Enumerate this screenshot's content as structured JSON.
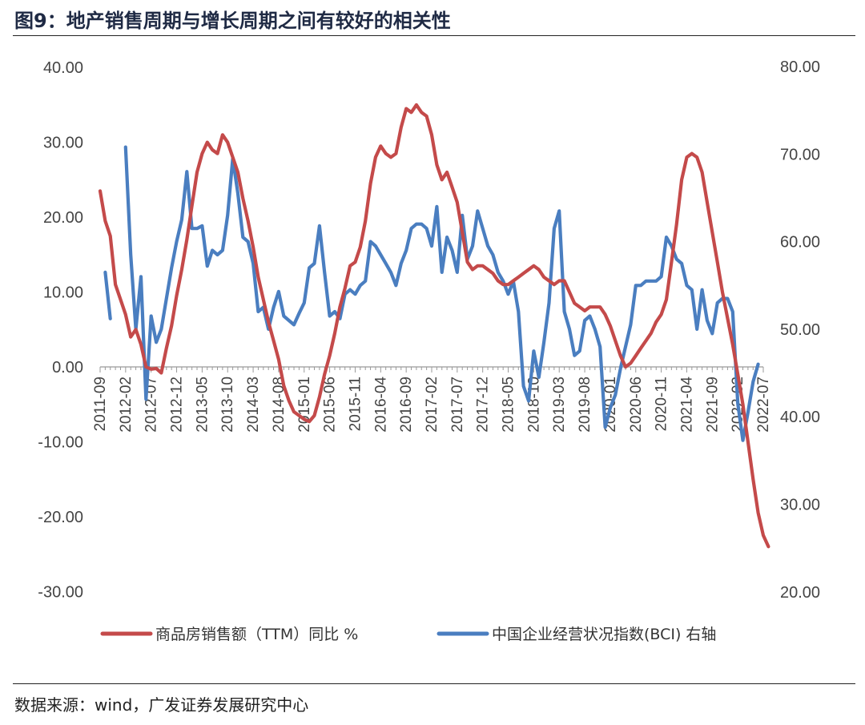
{
  "header": {
    "title": "图9：地产销售周期与增长周期之间有较好的相关性"
  },
  "footer": {
    "source": "数据来源：wind，广发证券发展研究中心"
  },
  "colors": {
    "sales": "#c44a4a",
    "bci": "#4a7ec0"
  },
  "chart_data": {
    "type": "line",
    "title": "",
    "x_ticks": [
      "2011-09",
      "2012-02",
      "2012-07",
      "2012-12",
      "2013-05",
      "2013-10",
      "2014-03",
      "2014-08",
      "2015-01",
      "2015-06",
      "2015-11",
      "2016-04",
      "2016-09",
      "2017-02",
      "2017-07",
      "2017-12",
      "2018-05",
      "2018-10",
      "2019-03",
      "2019-08",
      "2020-01",
      "2020-06",
      "2020-11",
      "2021-04",
      "2021-09",
      "2022-02",
      "2022-07"
    ],
    "y_left": {
      "min": -30,
      "max": 40,
      "step": 10,
      "tick_labels": [
        "40.00",
        "30.00",
        "20.00",
        "10.00",
        "0.00",
        "-10.00",
        "-20.00",
        "-30.00"
      ]
    },
    "y_right": {
      "min": 20,
      "max": 80,
      "step": 10,
      "tick_labels": [
        "80.00",
        "70.00",
        "60.00",
        "50.00",
        "40.00",
        "30.00",
        "20.00"
      ]
    },
    "grid": false,
    "legend_position": "bottom",
    "series": [
      {
        "name": "商品房销售额（TTM）同比 %",
        "axis": "left",
        "color": "#c44a4a",
        "points": [
          [
            "2011-09",
            23.5
          ],
          [
            "2011-10",
            19.5
          ],
          [
            "2011-11",
            17.5
          ],
          [
            "2011-12",
            11.0
          ],
          [
            "2012-01",
            9.0
          ],
          [
            "2012-02",
            7.0
          ],
          [
            "2012-03",
            4.0
          ],
          [
            "2012-04",
            5.0
          ],
          [
            "2012-05",
            3.0
          ],
          [
            "2012-06",
            0.0
          ],
          [
            "2012-07",
            -0.3
          ],
          [
            "2012-08",
            -0.2
          ],
          [
            "2012-09",
            -0.8
          ],
          [
            "2012-10",
            2.5
          ],
          [
            "2012-11",
            5.5
          ],
          [
            "2012-12",
            9.5
          ],
          [
            "2013-01",
            13.0
          ],
          [
            "2013-02",
            17.0
          ],
          [
            "2013-03",
            21.5
          ],
          [
            "2013-04",
            26.0
          ],
          [
            "2013-05",
            28.5
          ],
          [
            "2013-06",
            30.0
          ],
          [
            "2013-07",
            29.0
          ],
          [
            "2013-08",
            28.5
          ],
          [
            "2013-09",
            31.0
          ],
          [
            "2013-10",
            30.0
          ],
          [
            "2013-11",
            28.0
          ],
          [
            "2013-12",
            26.0
          ],
          [
            "2014-01",
            22.5
          ],
          [
            "2014-02",
            19.5
          ],
          [
            "2014-03",
            16.0
          ],
          [
            "2014-04",
            12.0
          ],
          [
            "2014-05",
            9.0
          ],
          [
            "2014-06",
            6.0
          ],
          [
            "2014-07",
            3.5
          ],
          [
            "2014-08",
            1.0
          ],
          [
            "2014-09",
            -2.5
          ],
          [
            "2014-10",
            -4.5
          ],
          [
            "2014-11",
            -6.0
          ],
          [
            "2014-12",
            -6.5
          ],
          [
            "2015-01",
            -7.0
          ],
          [
            "2015-02",
            -7.3
          ],
          [
            "2015-03",
            -6.5
          ],
          [
            "2015-04",
            -4.0
          ],
          [
            "2015-05",
            -1.0
          ],
          [
            "2015-06",
            1.5
          ],
          [
            "2015-07",
            4.5
          ],
          [
            "2015-08",
            8.0
          ],
          [
            "2015-09",
            10.5
          ],
          [
            "2015-10",
            13.5
          ],
          [
            "2015-11",
            14.0
          ],
          [
            "2015-12",
            16.0
          ],
          [
            "2016-01",
            19.5
          ],
          [
            "2016-02",
            24.5
          ],
          [
            "2016-03",
            28.0
          ],
          [
            "2016-04",
            29.5
          ],
          [
            "2016-05",
            28.5
          ],
          [
            "2016-06",
            28.0
          ],
          [
            "2016-07",
            28.5
          ],
          [
            "2016-08",
            32.0
          ],
          [
            "2016-09",
            34.5
          ],
          [
            "2016-10",
            34.0
          ],
          [
            "2016-11",
            35.0
          ],
          [
            "2016-12",
            34.0
          ],
          [
            "2017-01",
            33.5
          ],
          [
            "2017-02",
            31.0
          ],
          [
            "2017-03",
            27.0
          ],
          [
            "2017-04",
            25.0
          ],
          [
            "2017-05",
            26.0
          ],
          [
            "2017-06",
            24.0
          ],
          [
            "2017-07",
            22.0
          ],
          [
            "2017-08",
            18.0
          ],
          [
            "2017-09",
            14.0
          ],
          [
            "2017-10",
            13.0
          ],
          [
            "2017-11",
            13.5
          ],
          [
            "2017-12",
            13.5
          ],
          [
            "2018-01",
            13.0
          ],
          [
            "2018-02",
            12.5
          ],
          [
            "2018-03",
            11.5
          ],
          [
            "2018-04",
            11.0
          ],
          [
            "2018-05",
            11.0
          ],
          [
            "2018-06",
            11.5
          ],
          [
            "2018-07",
            12.0
          ],
          [
            "2018-08",
            12.5
          ],
          [
            "2018-09",
            13.0
          ],
          [
            "2018-10",
            13.5
          ],
          [
            "2018-11",
            13.0
          ],
          [
            "2018-12",
            12.0
          ],
          [
            "2019-01",
            11.5
          ],
          [
            "2019-02",
            11.0
          ],
          [
            "2019-03",
            11.5
          ],
          [
            "2019-04",
            11.5
          ],
          [
            "2019-05",
            10.0
          ],
          [
            "2019-06",
            8.5
          ],
          [
            "2019-07",
            8.0
          ],
          [
            "2019-08",
            7.5
          ],
          [
            "2019-09",
            8.0
          ],
          [
            "2019-10",
            8.0
          ],
          [
            "2019-11",
            8.0
          ],
          [
            "2019-12",
            7.0
          ],
          [
            "2020-01",
            5.5
          ],
          [
            "2020-02",
            3.5
          ],
          [
            "2020-03",
            1.5
          ],
          [
            "2020-04",
            0.0
          ],
          [
            "2020-05",
            0.5
          ],
          [
            "2020-06",
            1.5
          ],
          [
            "2020-07",
            2.5
          ],
          [
            "2020-08",
            3.5
          ],
          [
            "2020-09",
            4.5
          ],
          [
            "2020-10",
            6.0
          ],
          [
            "2020-11",
            7.0
          ],
          [
            "2020-12",
            9.0
          ],
          [
            "2021-01",
            14.0
          ],
          [
            "2021-02",
            19.0
          ],
          [
            "2021-03",
            25.0
          ],
          [
            "2021-04",
            28.0
          ],
          [
            "2021-05",
            28.5
          ],
          [
            "2021-06",
            28.0
          ],
          [
            "2021-07",
            26.0
          ],
          [
            "2021-08",
            22.0
          ],
          [
            "2021-09",
            18.0
          ],
          [
            "2021-10",
            14.0
          ],
          [
            "2021-11",
            10.0
          ],
          [
            "2021-12",
            6.5
          ],
          [
            "2022-01",
            3.0
          ],
          [
            "2022-02",
            -1.0
          ],
          [
            "2022-03",
            -5.0
          ],
          [
            "2022-04",
            -10.0
          ],
          [
            "2022-05",
            -15.0
          ],
          [
            "2022-06",
            -19.5
          ],
          [
            "2022-07",
            -22.5
          ],
          [
            "2022-08",
            -24.0
          ]
        ]
      },
      {
        "name": "中国企业经营状况指数(BCI) 右轴",
        "axis": "right",
        "color": "#4a7ec0",
        "segments": [
          [
            [
              "2011-10",
              56.5
            ],
            [
              "2011-11",
              51.2
            ]
          ],
          [
            [
              "2012-02",
              70.8
            ],
            [
              "2012-03",
              58.5
            ],
            [
              "2012-04",
              50.0
            ],
            [
              "2012-05",
              56.0
            ],
            [
              "2012-06",
              42.0
            ],
            [
              "2012-07",
              51.5
            ],
            [
              "2012-08",
              48.5
            ],
            [
              "2012-09",
              50.0
            ],
            [
              "2012-10",
              53.5
            ],
            [
              "2012-11",
              57.0
            ],
            [
              "2012-12",
              60.0
            ],
            [
              "2013-01",
              62.5
            ],
            [
              "2013-02",
              68.0
            ],
            [
              "2013-03",
              61.5
            ],
            [
              "2013-04",
              61.5
            ],
            [
              "2013-05",
              61.8
            ],
            [
              "2013-06",
              57.2
            ],
            [
              "2013-07",
              59.0
            ],
            [
              "2013-08",
              58.5
            ],
            [
              "2013-09",
              59.0
            ],
            [
              "2013-10",
              63.0
            ],
            [
              "2013-11",
              69.5
            ],
            [
              "2013-12",
              65.5
            ],
            [
              "2014-01",
              60.5
            ],
            [
              "2014-02",
              60.0
            ],
            [
              "2014-03",
              57.5
            ],
            [
              "2014-04",
              52.0
            ],
            [
              "2014-05",
              52.5
            ],
            [
              "2014-06",
              50.0
            ],
            [
              "2014-07",
              52.5
            ],
            [
              "2014-08",
              54.3
            ],
            [
              "2014-09",
              51.5
            ],
            [
              "2014-10",
              51.0
            ],
            [
              "2014-11",
              50.5
            ],
            [
              "2014-12",
              51.8
            ],
            [
              "2015-01",
              53.0
            ],
            [
              "2015-02",
              57.0
            ],
            [
              "2015-03",
              57.5
            ],
            [
              "2015-04",
              61.8
            ],
            [
              "2015-05",
              56.5
            ],
            [
              "2015-06",
              51.5
            ],
            [
              "2015-07",
              52.0
            ],
            [
              "2015-08",
              51.2
            ],
            [
              "2015-09",
              54.0
            ],
            [
              "2015-10",
              54.5
            ],
            [
              "2015-11",
              54.0
            ],
            [
              "2015-12",
              55.0
            ],
            [
              "2016-01",
              55.5
            ],
            [
              "2016-02",
              60.0
            ],
            [
              "2016-03",
              59.5
            ],
            [
              "2016-04",
              58.5
            ],
            [
              "2016-05",
              57.5
            ],
            [
              "2016-06",
              56.5
            ],
            [
              "2016-07",
              55.0
            ],
            [
              "2016-08",
              57.5
            ],
            [
              "2016-09",
              59.0
            ],
            [
              "2016-10",
              61.5
            ],
            [
              "2016-11",
              62.0
            ],
            [
              "2016-12",
              62.0
            ],
            [
              "2017-01",
              61.5
            ],
            [
              "2017-02",
              59.5
            ],
            [
              "2017-03",
              64.0
            ],
            [
              "2017-04",
              56.5
            ],
            [
              "2017-05",
              60.5
            ],
            [
              "2017-06",
              59.0
            ],
            [
              "2017-07",
              56.5
            ],
            [
              "2017-08",
              63.0
            ],
            [
              "2017-09",
              58.0
            ],
            [
              "2017-10",
              59.5
            ],
            [
              "2017-11",
              63.5
            ],
            [
              "2017-12",
              61.5
            ],
            [
              "2018-01",
              59.5
            ],
            [
              "2018-02",
              58.5
            ],
            [
              "2018-03",
              56.5
            ],
            [
              "2018-04",
              55.5
            ],
            [
              "2018-05",
              54.0
            ],
            [
              "2018-06",
              55.5
            ],
            [
              "2018-07",
              52.0
            ],
            [
              "2018-08",
              43.5
            ],
            [
              "2018-09",
              41.8
            ],
            [
              "2018-10",
              47.5
            ],
            [
              "2018-11",
              44.5
            ],
            [
              "2018-12",
              48.5
            ],
            [
              "2019-01",
              53.0
            ],
            [
              "2019-02",
              61.5
            ],
            [
              "2019-03",
              63.5
            ],
            [
              "2019-04",
              52.0
            ],
            [
              "2019-05",
              50.0
            ],
            [
              "2019-06",
              47.0
            ],
            [
              "2019-07",
              47.5
            ],
            [
              "2019-08",
              51.0
            ],
            [
              "2019-09",
              51.5
            ],
            [
              "2019-10",
              50.0
            ],
            [
              "2019-11",
              48.0
            ],
            [
              "2019-12",
              38.8
            ],
            [
              "2020-01",
              41.0
            ],
            [
              "2020-02",
              42.5
            ],
            [
              "2020-03",
              45.5
            ],
            [
              "2020-04",
              48.0
            ],
            [
              "2020-05",
              50.5
            ],
            [
              "2020-06",
              55.0
            ],
            [
              "2020-07",
              55.0
            ],
            [
              "2020-08",
              55.5
            ],
            [
              "2020-09",
              55.5
            ],
            [
              "2020-10",
              55.5
            ],
            [
              "2020-11",
              56.0
            ],
            [
              "2020-12",
              60.5
            ],
            [
              "2021-01",
              59.5
            ],
            [
              "2021-02",
              58.0
            ],
            [
              "2021-03",
              57.5
            ],
            [
              "2021-04",
              55.0
            ],
            [
              "2021-05",
              54.5
            ],
            [
              "2021-06",
              50.0
            ],
            [
              "2021-07",
              54.5
            ],
            [
              "2021-08",
              51.0
            ],
            [
              "2021-09",
              49.5
            ],
            [
              "2021-10",
              53.0
            ],
            [
              "2021-11",
              53.5
            ],
            [
              "2021-12",
              53.5
            ],
            [
              "2022-01",
              52.0
            ],
            [
              "2022-02",
              41.5
            ],
            [
              "2022-03",
              37.3
            ],
            [
              "2022-04",
              40.5
            ],
            [
              "2022-05",
              44.0
            ],
            [
              "2022-06",
              46.0
            ]
          ]
        ]
      }
    ]
  }
}
